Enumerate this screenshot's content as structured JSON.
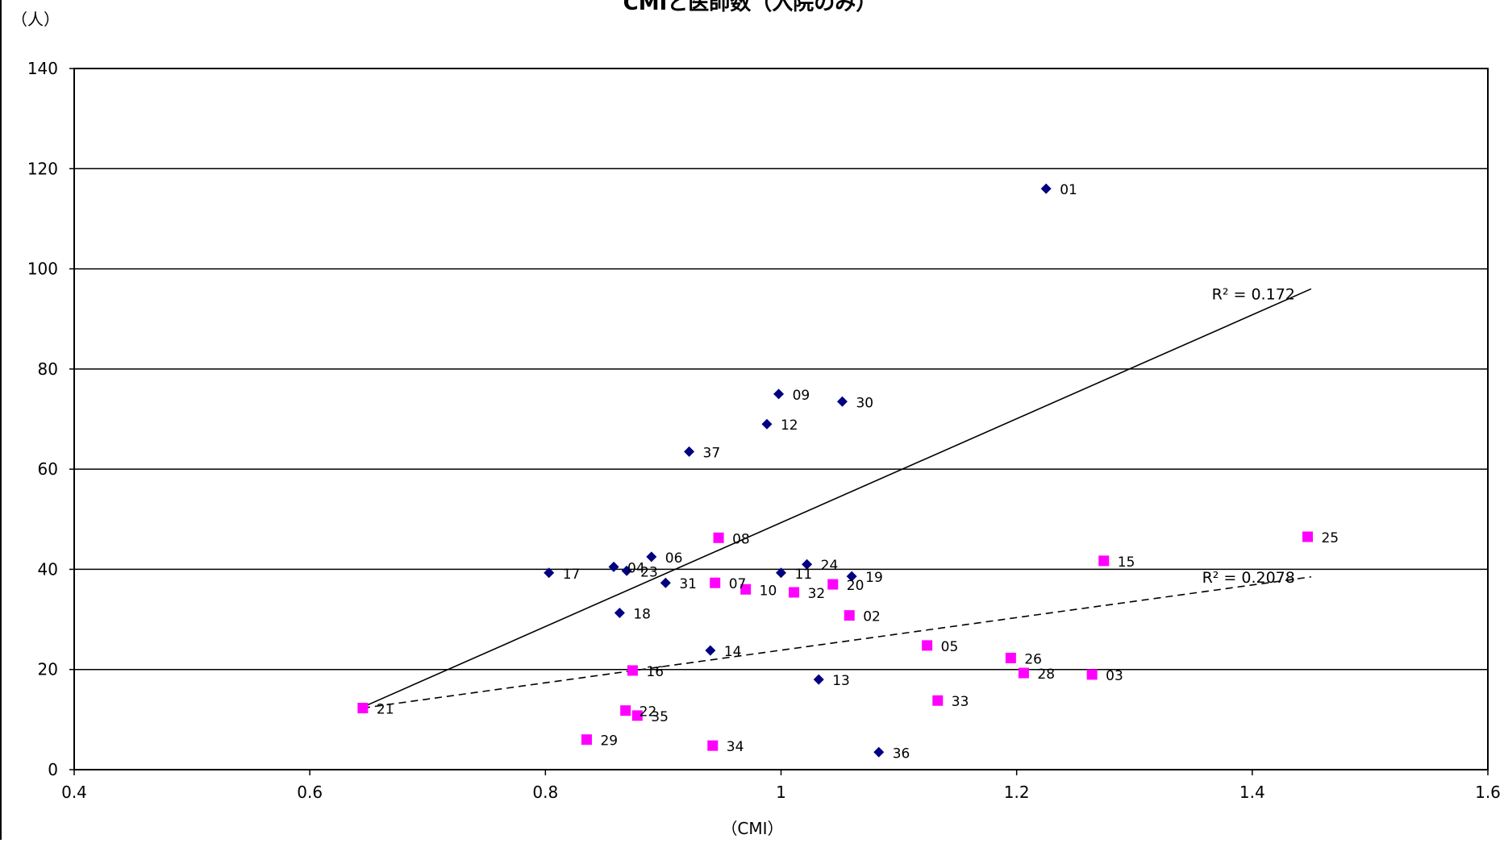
{
  "chart_data": {
    "type": "scatter",
    "title": "CMIと医師数（入院のみ）",
    "xlabel": "（CMI）",
    "ylabel": "（人）",
    "xlim": [
      0.4,
      1.6
    ],
    "ylim": [
      0,
      140
    ],
    "x_ticks": [
      "0.4",
      "0.6",
      "0.8",
      "1",
      "1.2",
      "1.4",
      "1.6"
    ],
    "y_ticks": [
      "0",
      "20",
      "40",
      "60",
      "80",
      "100",
      "120",
      "140"
    ],
    "grid": "horizontal",
    "legend": "none",
    "series": [
      {
        "marker": "diamond",
        "color": "#000080",
        "trendline": "solid",
        "r2_label": "R² = 0.172",
        "trend_start": [
          0.645,
          12.5
        ],
        "trend_end": [
          1.45,
          96
        ],
        "points": [
          {
            "label": "01",
            "x": 1.225,
            "y": 116
          },
          {
            "label": "09",
            "x": 0.998,
            "y": 75
          },
          {
            "label": "30",
            "x": 1.052,
            "y": 73.5
          },
          {
            "label": "12",
            "x": 0.988,
            "y": 69
          },
          {
            "label": "37",
            "x": 0.922,
            "y": 63.5
          },
          {
            "label": "06",
            "x": 0.89,
            "y": 42.5
          },
          {
            "label": "04",
            "x": 0.858,
            "y": 40.5
          },
          {
            "label": "23",
            "x": 0.869,
            "y": 39.7
          },
          {
            "label": "17",
            "x": 0.803,
            "y": 39.3
          },
          {
            "label": "24",
            "x": 1.022,
            "y": 41
          },
          {
            "label": "11",
            "x": 1.0,
            "y": 39.3
          },
          {
            "label": "19",
            "x": 1.06,
            "y": 38.6
          },
          {
            "label": "31",
            "x": 0.902,
            "y": 37.3
          },
          {
            "label": "18",
            "x": 0.863,
            "y": 31.3
          },
          {
            "label": "14",
            "x": 0.94,
            "y": 23.8
          },
          {
            "label": "13",
            "x": 1.032,
            "y": 18
          },
          {
            "label": "36",
            "x": 1.083,
            "y": 3.5
          }
        ]
      },
      {
        "marker": "square",
        "color": "#ff00ff",
        "trendline": "dashed",
        "r2_label": "R² = 0.2078",
        "trend_start": [
          0.645,
          12.3
        ],
        "trend_end": [
          1.45,
          38.5
        ],
        "points": [
          {
            "label": "25",
            "x": 1.447,
            "y": 46.5
          },
          {
            "label": "08",
            "x": 0.947,
            "y": 46.3
          },
          {
            "label": "15",
            "x": 1.274,
            "y": 41.7
          },
          {
            "label": "07",
            "x": 0.944,
            "y": 37.3
          },
          {
            "label": "20",
            "x": 1.044,
            "y": 37
          },
          {
            "label": "10",
            "x": 0.97,
            "y": 36
          },
          {
            "label": "32",
            "x": 1.011,
            "y": 35.4
          },
          {
            "label": "02",
            "x": 1.058,
            "y": 30.8
          },
          {
            "label": "05",
            "x": 1.124,
            "y": 24.8
          },
          {
            "label": "26",
            "x": 1.195,
            "y": 22.3
          },
          {
            "label": "16",
            "x": 0.874,
            "y": 19.8
          },
          {
            "label": "28",
            "x": 1.206,
            "y": 19.3
          },
          {
            "label": "03",
            "x": 1.264,
            "y": 19
          },
          {
            "label": "33",
            "x": 1.133,
            "y": 13.8
          },
          {
            "label": "21",
            "x": 0.645,
            "y": 12.3
          },
          {
            "label": "22",
            "x": 0.868,
            "y": 11.8
          },
          {
            "label": "35",
            "x": 0.878,
            "y": 10.8
          },
          {
            "label": "29",
            "x": 0.835,
            "y": 6
          },
          {
            "label": "34",
            "x": 0.942,
            "y": 4.8
          }
        ]
      }
    ]
  }
}
